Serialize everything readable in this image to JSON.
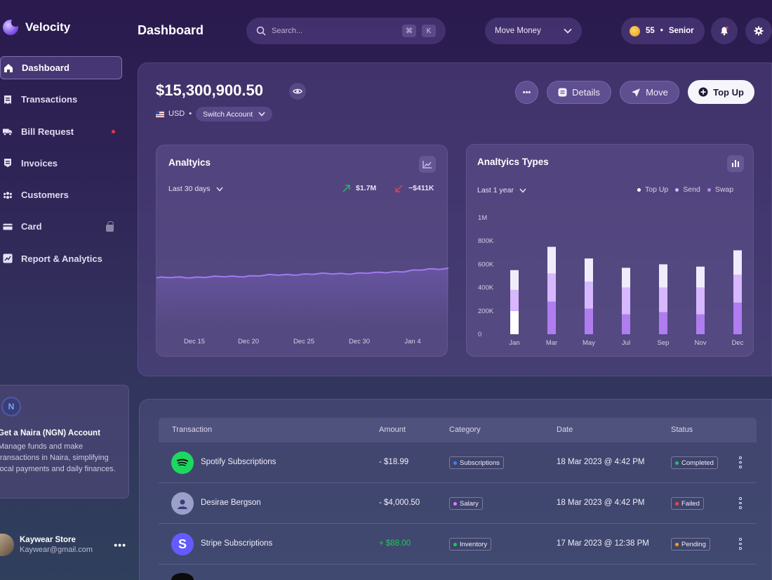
{
  "app": {
    "name": "Velocity"
  },
  "sidebar": {
    "items": [
      {
        "label": "Dashboard",
        "icon": "home-icon",
        "active": true
      },
      {
        "label": "Transactions",
        "icon": "receipt-icon"
      },
      {
        "label": "Bill Request",
        "icon": "truck-icon",
        "badge": "notification-dot"
      },
      {
        "label": "Invoices",
        "icon": "invoice-icon"
      },
      {
        "label": "Customers",
        "icon": "users-icon"
      },
      {
        "label": "Card",
        "icon": "card-icon",
        "locked": true
      },
      {
        "label": "Report & Analytics",
        "icon": "chart-icon"
      }
    ],
    "promo": {
      "badge": "N",
      "title": "Get a Naira (NGN) Account",
      "text": "Manage funds and make transactions in Naira, simplifying local payments and daily finances."
    },
    "user": {
      "name": "Kaywear Store",
      "email": "Kaywear@gmail.com",
      "more": "•••"
    }
  },
  "header": {
    "title": "Dashboard",
    "search_placeholder": "Search...",
    "shortcut_keys": [
      "⌘",
      "K"
    ],
    "move_money_label": "Move Money",
    "points": "55",
    "separator": "•",
    "tier": "Senior"
  },
  "balance": {
    "amount": "$15,300,900.50",
    "currency": "USD",
    "separator": "•",
    "switch_label": "Switch Account",
    "more_label": "•••",
    "details_label": "Details",
    "move_label": "Move",
    "topup_label": "Top Up"
  },
  "analytics": {
    "title": "Analtyics",
    "range_label": "Last 30 days",
    "up_value": "$1.7M",
    "down_value": "−$411K",
    "accent": "#a07af0"
  },
  "analytics_types": {
    "title": "Analtyics Types",
    "range_label": "Last 1 year",
    "legend": [
      {
        "name": "Top Up",
        "color": "#ffffff"
      },
      {
        "name": "Send",
        "color": "#d7b8ff"
      },
      {
        "name": "Swap",
        "color": "#b889f2"
      }
    ]
  },
  "chart_data": [
    {
      "type": "line",
      "x": [
        "Dec 15",
        "Dec 20",
        "Dec 25",
        "Dec 30",
        "Jan 4"
      ],
      "y": [
        0.42,
        0.43,
        0.45,
        0.46,
        0.5
      ],
      "xlabel": "",
      "ylabel": ""
    },
    {
      "type": "bar",
      "stacked": true,
      "categories": [
        "Jan",
        "Mar",
        "May",
        "Jul",
        "Sep",
        "Nov",
        "Dec"
      ],
      "ylim": [
        0,
        1000000
      ],
      "yticks": [
        "0",
        "200K",
        "400K",
        "600K",
        "800K",
        "1M"
      ],
      "ytick_values": [
        0,
        200000,
        400000,
        600000,
        800000,
        1000000
      ],
      "series": [
        {
          "name": "Top Up",
          "values": [
            200000,
            0,
            0,
            0,
            0,
            0,
            0
          ]
        },
        {
          "name": "Send",
          "values": [
            180000,
            240000,
            230000,
            230000,
            210000,
            230000,
            240000
          ]
        },
        {
          "name": "Swap",
          "values": [
            170000,
            280000,
            220000,
            170000,
            190000,
            170000,
            270000
          ]
        },
        {
          "name": "",
          "values": [
            0,
            230000,
            200000,
            170000,
            200000,
            180000,
            210000
          ]
        }
      ]
    }
  ],
  "table": {
    "headers": [
      "Transaction",
      "Amount",
      "Category",
      "Date",
      "Status"
    ],
    "rows": [
      {
        "name": "Spotify Subscriptions",
        "icon": "spotify-icon",
        "icon_color": "#1ed760",
        "amount": "- $18.99",
        "amount_color": "#f1eefa",
        "category": "Subscriptions",
        "category_color": "#3b82f6",
        "date": "18 Mar 2023 @ 4:42 PM",
        "status": "Completed",
        "status_color": "#22c55e"
      },
      {
        "name": "Desirae Bergson",
        "icon": "avatar-icon",
        "icon_color": "#9aa0c8",
        "amount": "- $4,000.50",
        "amount_color": "#f1eefa",
        "category": "Salary",
        "category_color": "#e879f9",
        "date": "18 Mar 2023 @ 4:42 PM",
        "status": "Failed",
        "status_color": "#ef4444"
      },
      {
        "name": "Stripe Subscriptions",
        "icon": "stripe-icon",
        "icon_color": "#635bff",
        "amount": "+ $88.00",
        "amount_color": "#22c55e",
        "category": "Inventory",
        "category_color": "#22c55e",
        "date": "17 Mar 2023 @ 12:38 PM",
        "status": "Pending",
        "status_color": "#f59e0b"
      }
    ]
  }
}
